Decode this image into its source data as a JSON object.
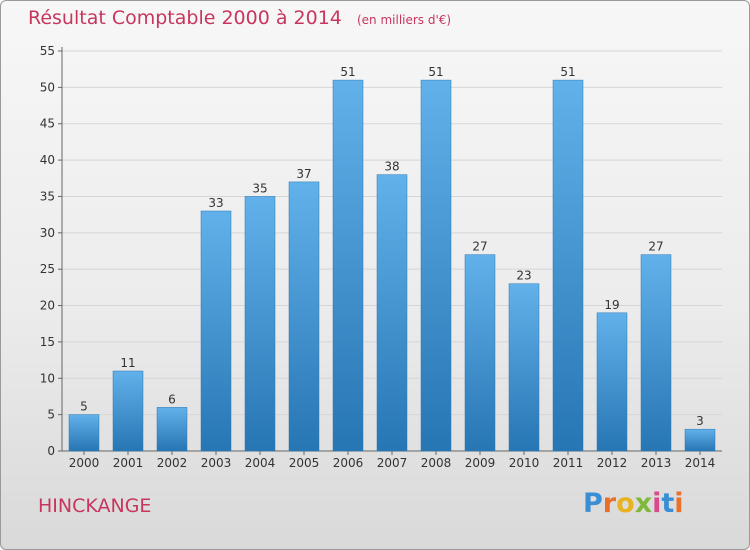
{
  "header": {
    "title": "Résultat Comptable 2000 à 2014",
    "subtitle": "(en milliers d'€)"
  },
  "footer": {
    "commune": "HINCKANGE",
    "logo_text": "Proxiti"
  },
  "colors": {
    "title": "#c8365e",
    "bar_top": "#62b1ea",
    "bar_bottom": "#2776b4",
    "grid": "#d6d6d6"
  },
  "chart_data": {
    "type": "bar",
    "title": "Résultat Comptable 2000 à 2014",
    "subtitle": "(en milliers d'€)",
    "xlabel": "",
    "ylabel": "",
    "categories": [
      "2000",
      "2001",
      "2002",
      "2003",
      "2004",
      "2005",
      "2006",
      "2007",
      "2008",
      "2009",
      "2010",
      "2011",
      "2012",
      "2013",
      "2014"
    ],
    "values": [
      5,
      11,
      6,
      33,
      35,
      37,
      51,
      38,
      51,
      27,
      23,
      51,
      19,
      27,
      3
    ],
    "ylim": [
      0,
      55
    ],
    "yticks": [
      0,
      5,
      10,
      15,
      20,
      25,
      30,
      35,
      40,
      45,
      50,
      55
    ],
    "grid": true,
    "legend": "none"
  }
}
